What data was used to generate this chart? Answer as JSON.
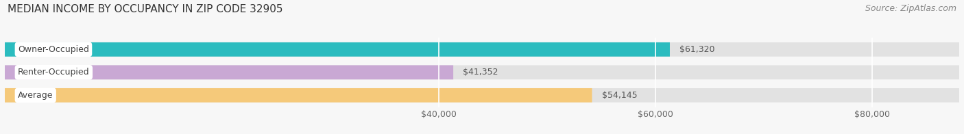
{
  "title": "MEDIAN INCOME BY OCCUPANCY IN ZIP CODE 32905",
  "source": "Source: ZipAtlas.com",
  "categories": [
    "Owner-Occupied",
    "Renter-Occupied",
    "Average"
  ],
  "values": [
    61320,
    41352,
    54145
  ],
  "bar_colors": [
    "#2bbcbf",
    "#c9a8d4",
    "#f5c97a"
  ],
  "bar_bg_color": "#e2e2e2",
  "value_labels": [
    "$61,320",
    "$41,352",
    "$54,145"
  ],
  "tick_labels": [
    "$40,000",
    "$60,000",
    "$80,000"
  ],
  "tick_values": [
    40000,
    60000,
    80000
  ],
  "xmin": 0,
  "xmax": 88000,
  "title_fontsize": 11,
  "source_fontsize": 9,
  "bar_label_fontsize": 9,
  "tick_fontsize": 9,
  "background_color": "#f7f7f7",
  "bar_height": 0.62,
  "grid_color": "#ffffff"
}
